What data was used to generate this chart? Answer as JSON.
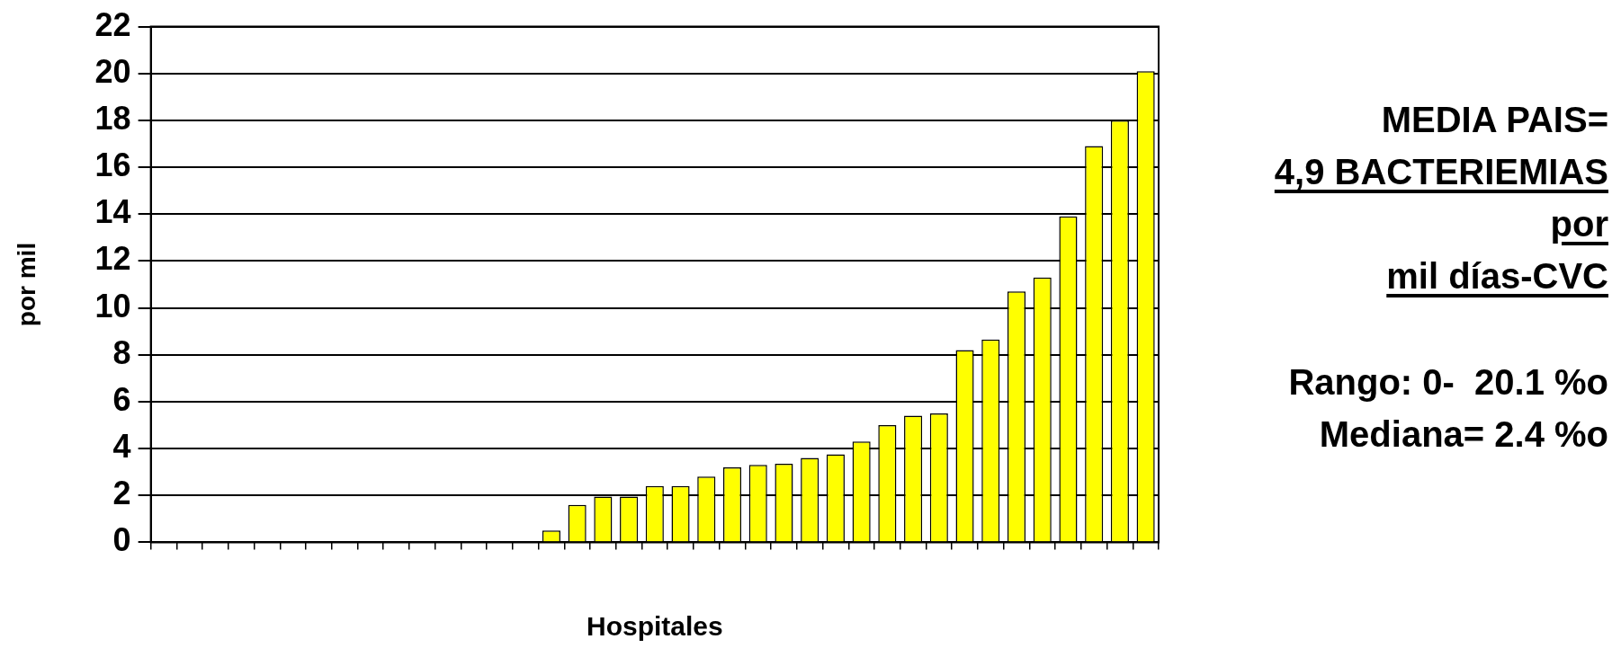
{
  "chart_data": {
    "type": "bar",
    "xlabel": "Hospitales",
    "ylabel": "por mil",
    "categories": [
      null,
      null,
      null,
      null,
      null,
      null,
      null,
      null,
      null,
      null,
      null,
      null,
      null,
      null,
      null,
      null,
      null,
      null,
      null,
      null,
      null,
      null,
      null,
      null,
      null,
      null,
      null,
      null,
      null,
      null,
      null,
      null,
      null,
      null,
      null,
      null,
      null,
      null,
      null
    ],
    "values": [
      0,
      0,
      0,
      0,
      0,
      0,
      0,
      0,
      0,
      0,
      0,
      0,
      0,
      0,
      0,
      0.5,
      1.6,
      1.95,
      1.95,
      2.4,
      2.4,
      2.8,
      3.2,
      3.3,
      3.35,
      3.6,
      3.75,
      4.3,
      5,
      5.4,
      5.5,
      8.2,
      8.65,
      10.7,
      11.3,
      13.9,
      16.9,
      18,
      20.1
    ],
    "color": "#ffff00",
    "ylim": [
      0,
      22
    ],
    "yticks": [
      0,
      2,
      4,
      6,
      8,
      10,
      12,
      14,
      16,
      18,
      20,
      22
    ],
    "grid": "y",
    "legend": false,
    "annotations": [
      "MEDIA PAIS=",
      "4,9 BACTERIEMIAS",
      "por",
      "mil días-CVC",
      "Rango: 0-  20.1 %o",
      "Mediana= 2.4 %o"
    ]
  }
}
